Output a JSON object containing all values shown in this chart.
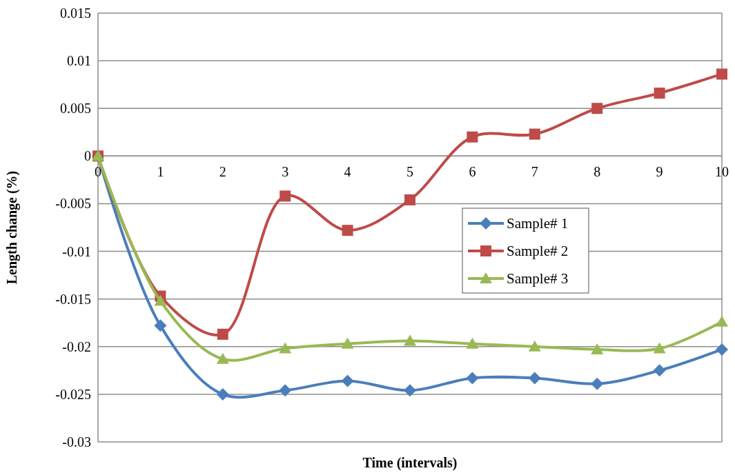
{
  "chart_data": {
    "type": "line",
    "xlabel": "Time (intervals)",
    "ylabel": "Length change (%)",
    "x": [
      0,
      1,
      2,
      3,
      4,
      5,
      6,
      7,
      8,
      9,
      10
    ],
    "xlim": [
      0,
      10
    ],
    "xticks": [
      0,
      1,
      2,
      3,
      4,
      5,
      6,
      7,
      8,
      9,
      10
    ],
    "ylim": [
      -0.03,
      0.015
    ],
    "yticks": [
      -0.03,
      -0.025,
      -0.02,
      -0.015,
      -0.01,
      -0.005,
      0,
      0.005,
      0.01,
      0.015
    ],
    "grid": "y",
    "legend": "right",
    "line_style": "solid",
    "series": [
      {
        "name": "Sample# 1",
        "color": "#4a7ebb",
        "marker": "diamond",
        "values": [
          0,
          -0.0178,
          -0.025,
          -0.0246,
          -0.0236,
          -0.0246,
          -0.0233,
          -0.0233,
          -0.0239,
          -0.0225,
          -0.0203
        ]
      },
      {
        "name": "Sample# 2",
        "color": "#be4b48",
        "marker": "square",
        "values": [
          0,
          -0.0147,
          -0.0187,
          -0.0042,
          -0.0078,
          -0.0046,
          0.002,
          0.0023,
          0.005,
          0.0066,
          0.0086
        ]
      },
      {
        "name": "Sample# 3",
        "color": "#98b954",
        "marker": "triangle",
        "values": [
          0,
          -0.0152,
          -0.0213,
          -0.0202,
          -0.0197,
          -0.0194,
          -0.0197,
          -0.02,
          -0.0203,
          -0.0202,
          -0.0174
        ]
      }
    ]
  }
}
